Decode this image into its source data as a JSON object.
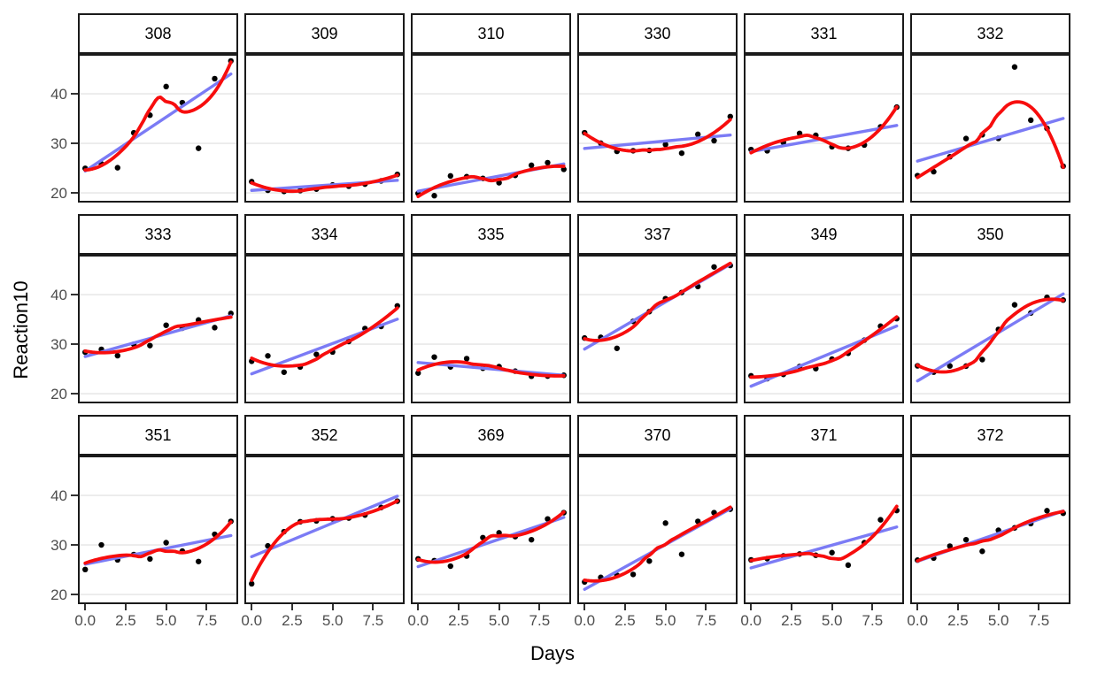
{
  "axes": {
    "x_title": "Days",
    "y_title": "Reaction10"
  },
  "chart_data": {
    "type": "scatter",
    "facet_by": "Subject",
    "layout": {
      "rows": 3,
      "cols": 6,
      "grid": "horizontal-major-only",
      "legend": "none"
    },
    "xlabel": "Days",
    "ylabel": "Reaction10",
    "xlim": [
      -0.45,
      9.45
    ],
    "ylim": [
      18.05,
      48.05
    ],
    "x_ticks": {
      "values": [
        0,
        2.5,
        5,
        7.5
      ],
      "labels": [
        "0.0",
        "2.5",
        "5.0",
        "7.5"
      ]
    },
    "y_ticks": {
      "values": [
        20,
        30,
        40
      ],
      "labels": [
        "20",
        "30",
        "40"
      ]
    },
    "x_values": [
      0,
      1,
      2,
      3,
      4,
      5,
      6,
      7,
      8,
      9
    ],
    "facets": [
      {
        "label": "308",
        "y": [
          24.96,
          25.87,
          25.08,
          32.14,
          35.69,
          41.47,
          38.22,
          29.01,
          43.06,
          46.64
        ]
      },
      {
        "label": "309",
        "y": [
          22.27,
          20.53,
          20.3,
          20.47,
          20.77,
          21.6,
          21.36,
          21.77,
          22.43,
          23.73
        ]
      },
      {
        "label": "310",
        "y": [
          19.91,
          19.44,
          23.43,
          23.28,
          22.93,
          22.05,
          23.54,
          25.58,
          26.1,
          24.75
        ]
      },
      {
        "label": "330",
        "y": [
          32.15,
          30.04,
          28.39,
          28.51,
          28.58,
          29.76,
          28.02,
          31.83,
          30.54,
          35.41
        ]
      },
      {
        "label": "331",
        "y": [
          28.76,
          28.5,
          30.18,
          32.01,
          31.63,
          29.33,
          29.01,
          29.66,
          33.33,
          37.32
        ]
      },
      {
        "label": "332",
        "y": [
          23.49,
          24.28,
          27.3,
          30.98,
          31.74,
          31.0,
          45.42,
          34.68,
          33.03,
          25.39
        ]
      },
      {
        "label": "333",
        "y": [
          28.38,
          28.96,
          27.68,
          29.98,
          29.72,
          33.82,
          33.23,
          34.88,
          33.34,
          36.2
        ]
      },
      {
        "label": "334",
        "y": [
          26.55,
          27.64,
          24.34,
          25.4,
          27.93,
          28.42,
          30.55,
          33.15,
          33.58,
          37.73
        ]
      },
      {
        "label": "335",
        "y": [
          24.16,
          27.39,
          25.41,
          27.08,
          25.15,
          25.46,
          24.55,
          23.53,
          23.56,
          23.72
        ]
      },
      {
        "label": "337",
        "y": [
          31.24,
          31.38,
          29.16,
          34.61,
          36.57,
          39.18,
          40.43,
          41.64,
          45.59,
          45.89
        ]
      },
      {
        "label": "349",
        "y": [
          23.61,
          23.03,
          23.89,
          25.49,
          25.07,
          26.98,
          28.16,
          30.81,
          33.63,
          35.16
        ]
      },
      {
        "label": "350",
        "y": [
          25.63,
          24.35,
          25.6,
          25.58,
          26.89,
          32.97,
          37.94,
          36.29,
          39.45,
          38.91
        ]
      },
      {
        "label": "351",
        "y": [
          25.05,
          30.01,
          26.99,
          28.06,
          27.18,
          30.46,
          28.77,
          26.66,
          32.15,
          34.76
        ]
      },
      {
        "label": "352",
        "y": [
          22.17,
          29.82,
          32.69,
          34.69,
          34.87,
          35.28,
          35.44,
          36.04,
          37.56,
          38.85
        ]
      },
      {
        "label": "369",
        "y": [
          27.19,
          26.84,
          25.72,
          27.77,
          31.48,
          32.45,
          31.68,
          31.06,
          35.25,
          36.52
        ]
      },
      {
        "label": "370",
        "y": [
          22.53,
          23.45,
          23.89,
          24.05,
          26.75,
          34.42,
          28.11,
          34.76,
          36.52,
          37.22
        ]
      },
      {
        "label": "371",
        "y": [
          26.99,
          27.24,
          27.79,
          28.18,
          27.92,
          28.45,
          25.93,
          30.46,
          35.08,
          36.95
        ]
      },
      {
        "label": "372",
        "y": [
          26.94,
          27.35,
          29.76,
          31.06,
          28.72,
          32.96,
          33.45,
          34.32,
          36.91,
          36.41
        ]
      }
    ],
    "series_styles": {
      "points": {
        "color": "#000000"
      },
      "loess_smooth": {
        "color": "#f70d0d",
        "span": 0.75
      },
      "linear_fit": {
        "color": "#7b7bf5"
      }
    },
    "style_colors": {
      "panel_background": "#ffffff",
      "gridline": "#ebebeb",
      "panel_border": "#1a1a1a",
      "strip_background": "#ffffff",
      "tick_label": "#4d4d4d"
    }
  }
}
